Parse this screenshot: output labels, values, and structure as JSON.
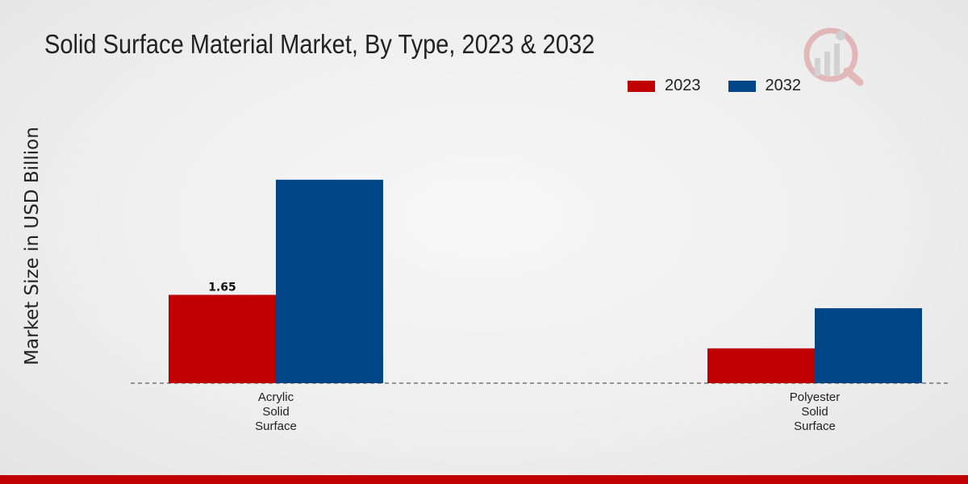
{
  "chart_data": {
    "type": "bar",
    "title": "Solid Surface Material Market, By Type, 2023 & 2032",
    "xlabel": "",
    "ylabel": "Market Size in USD Billion",
    "categories": [
      [
        "Acrylic",
        "Solid",
        "Surface"
      ],
      [
        "Polyester",
        "Solid",
        "Surface"
      ]
    ],
    "series": [
      {
        "name": "2023",
        "color": "#c00000",
        "values": [
          1.65,
          0.65
        ]
      },
      {
        "name": "2032",
        "color": "#004687",
        "values": [
          3.8,
          1.4
        ]
      }
    ],
    "data_labels": [
      {
        "series": 0,
        "category": 0,
        "text": "1.65"
      }
    ],
    "ylim": [
      0,
      5.5
    ],
    "grid": false,
    "legend": "top-right"
  }
}
